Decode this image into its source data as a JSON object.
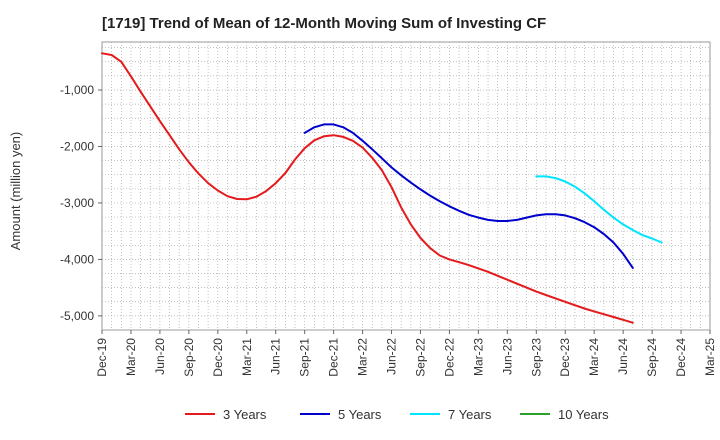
{
  "chart_data": {
    "type": "line",
    "title": "[1719]  Trend of Mean of 12-Month Moving Sum of Investing CF",
    "xlabel": "",
    "ylabel": "Amount (million yen)",
    "ylim": [
      -5250,
      -150
    ],
    "y_ticks": [
      {
        "value": -1000,
        "label": "-1,000"
      },
      {
        "value": -2000,
        "label": "-2,000"
      },
      {
        "value": -3000,
        "label": "-3,000"
      },
      {
        "value": -4000,
        "label": "-4,000"
      },
      {
        "value": -5000,
        "label": "-5,000"
      }
    ],
    "x_ticks": [
      "Dec-19",
      "Mar-20",
      "Jun-20",
      "Sep-20",
      "Dec-20",
      "Mar-21",
      "Jun-21",
      "Sep-21",
      "Dec-21",
      "Mar-22",
      "Jun-22",
      "Sep-22",
      "Dec-22",
      "Mar-23",
      "Jun-23",
      "Sep-23",
      "Dec-23",
      "Mar-24",
      "Jun-24",
      "Sep-24",
      "Dec-24",
      "Mar-25"
    ],
    "series": [
      {
        "name": "3 Years",
        "color": "#e41a1c",
        "start_index": 0,
        "values": [
          -350,
          -380,
          -500,
          -760,
          -1030,
          -1290,
          -1550,
          -1800,
          -2050,
          -2280,
          -2480,
          -2650,
          -2780,
          -2880,
          -2930,
          -2935,
          -2890,
          -2790,
          -2650,
          -2470,
          -2230,
          -2030,
          -1890,
          -1820,
          -1800,
          -1830,
          -1900,
          -2020,
          -2200,
          -2420,
          -2720,
          -3080,
          -3380,
          -3620,
          -3800,
          -3930,
          -4000,
          -4050,
          -4100,
          -4160,
          -4220,
          -4290,
          -4360,
          -4430,
          -4500,
          -4570,
          -4630,
          -4690,
          -4750,
          -4810,
          -4870,
          -4920,
          -4970,
          -5020,
          -5070,
          -5120
        ]
      },
      {
        "name": "5 Years",
        "color": "#0000cc",
        "start_index": 21,
        "values": [
          -1760,
          -1660,
          -1610,
          -1610,
          -1660,
          -1760,
          -1900,
          -2050,
          -2210,
          -2370,
          -2510,
          -2640,
          -2760,
          -2870,
          -2970,
          -3060,
          -3140,
          -3210,
          -3260,
          -3300,
          -3320,
          -3320,
          -3300,
          -3260,
          -3220,
          -3200,
          -3200,
          -3220,
          -3270,
          -3340,
          -3430,
          -3550,
          -3700,
          -3900,
          -4150
        ]
      },
      {
        "name": "7 Years",
        "color": "#00e5ff",
        "start_index": 45,
        "values": [
          -2530,
          -2530,
          -2560,
          -2620,
          -2710,
          -2830,
          -2970,
          -3120,
          -3260,
          -3380,
          -3480,
          -3570,
          -3630,
          -3700
        ]
      },
      {
        "name": "10 Years",
        "color": "#2ca02c",
        "start_index": 0,
        "values": []
      }
    ],
    "legend_position": "bottom",
    "grid": true
  }
}
